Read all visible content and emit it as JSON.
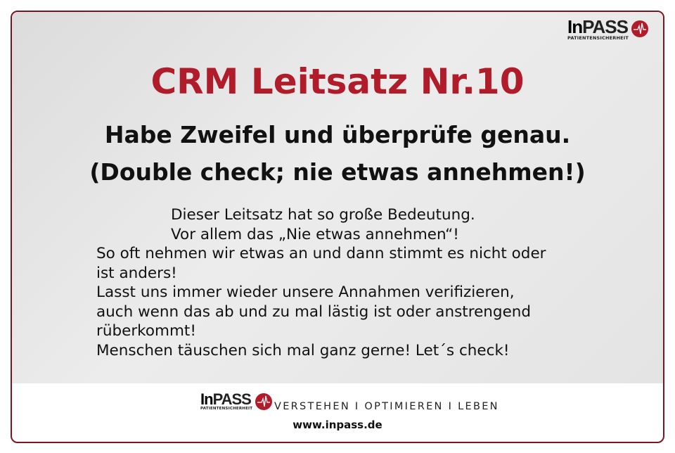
{
  "title": "CRM Leitsatz Nr.10",
  "subtitle": [
    "Habe Zweifel und überprüfe genau.",
    "(Double check; nie etwas annehmen!)"
  ],
  "body": [
    "Dieser Leitsatz hat so große Bedeutung.",
    "Vor allem das „Nie etwas annehmen“!",
    "So oft nehmen wir etwas an und dann stimmt es nicht oder",
    "ist anders!",
    "Lasst uns immer wieder unsere Annahmen verifizieren,",
    "auch wenn das ab und zu mal lästig ist oder anstrengend",
    "rüberkommt!",
    "Menschen täuschen sich mal ganz gerne! Let´s check!"
  ],
  "logo": {
    "in": "In",
    "pass": "PASS",
    "tagline": "PATIENTENSICHERHEIT"
  },
  "footer": {
    "slogan": "VERSTEHEN I OPTIMIEREN I LEBEN",
    "url": "www.inpass.de"
  },
  "colors": {
    "brand": "#b01c2a",
    "frame": "#7a1620"
  }
}
